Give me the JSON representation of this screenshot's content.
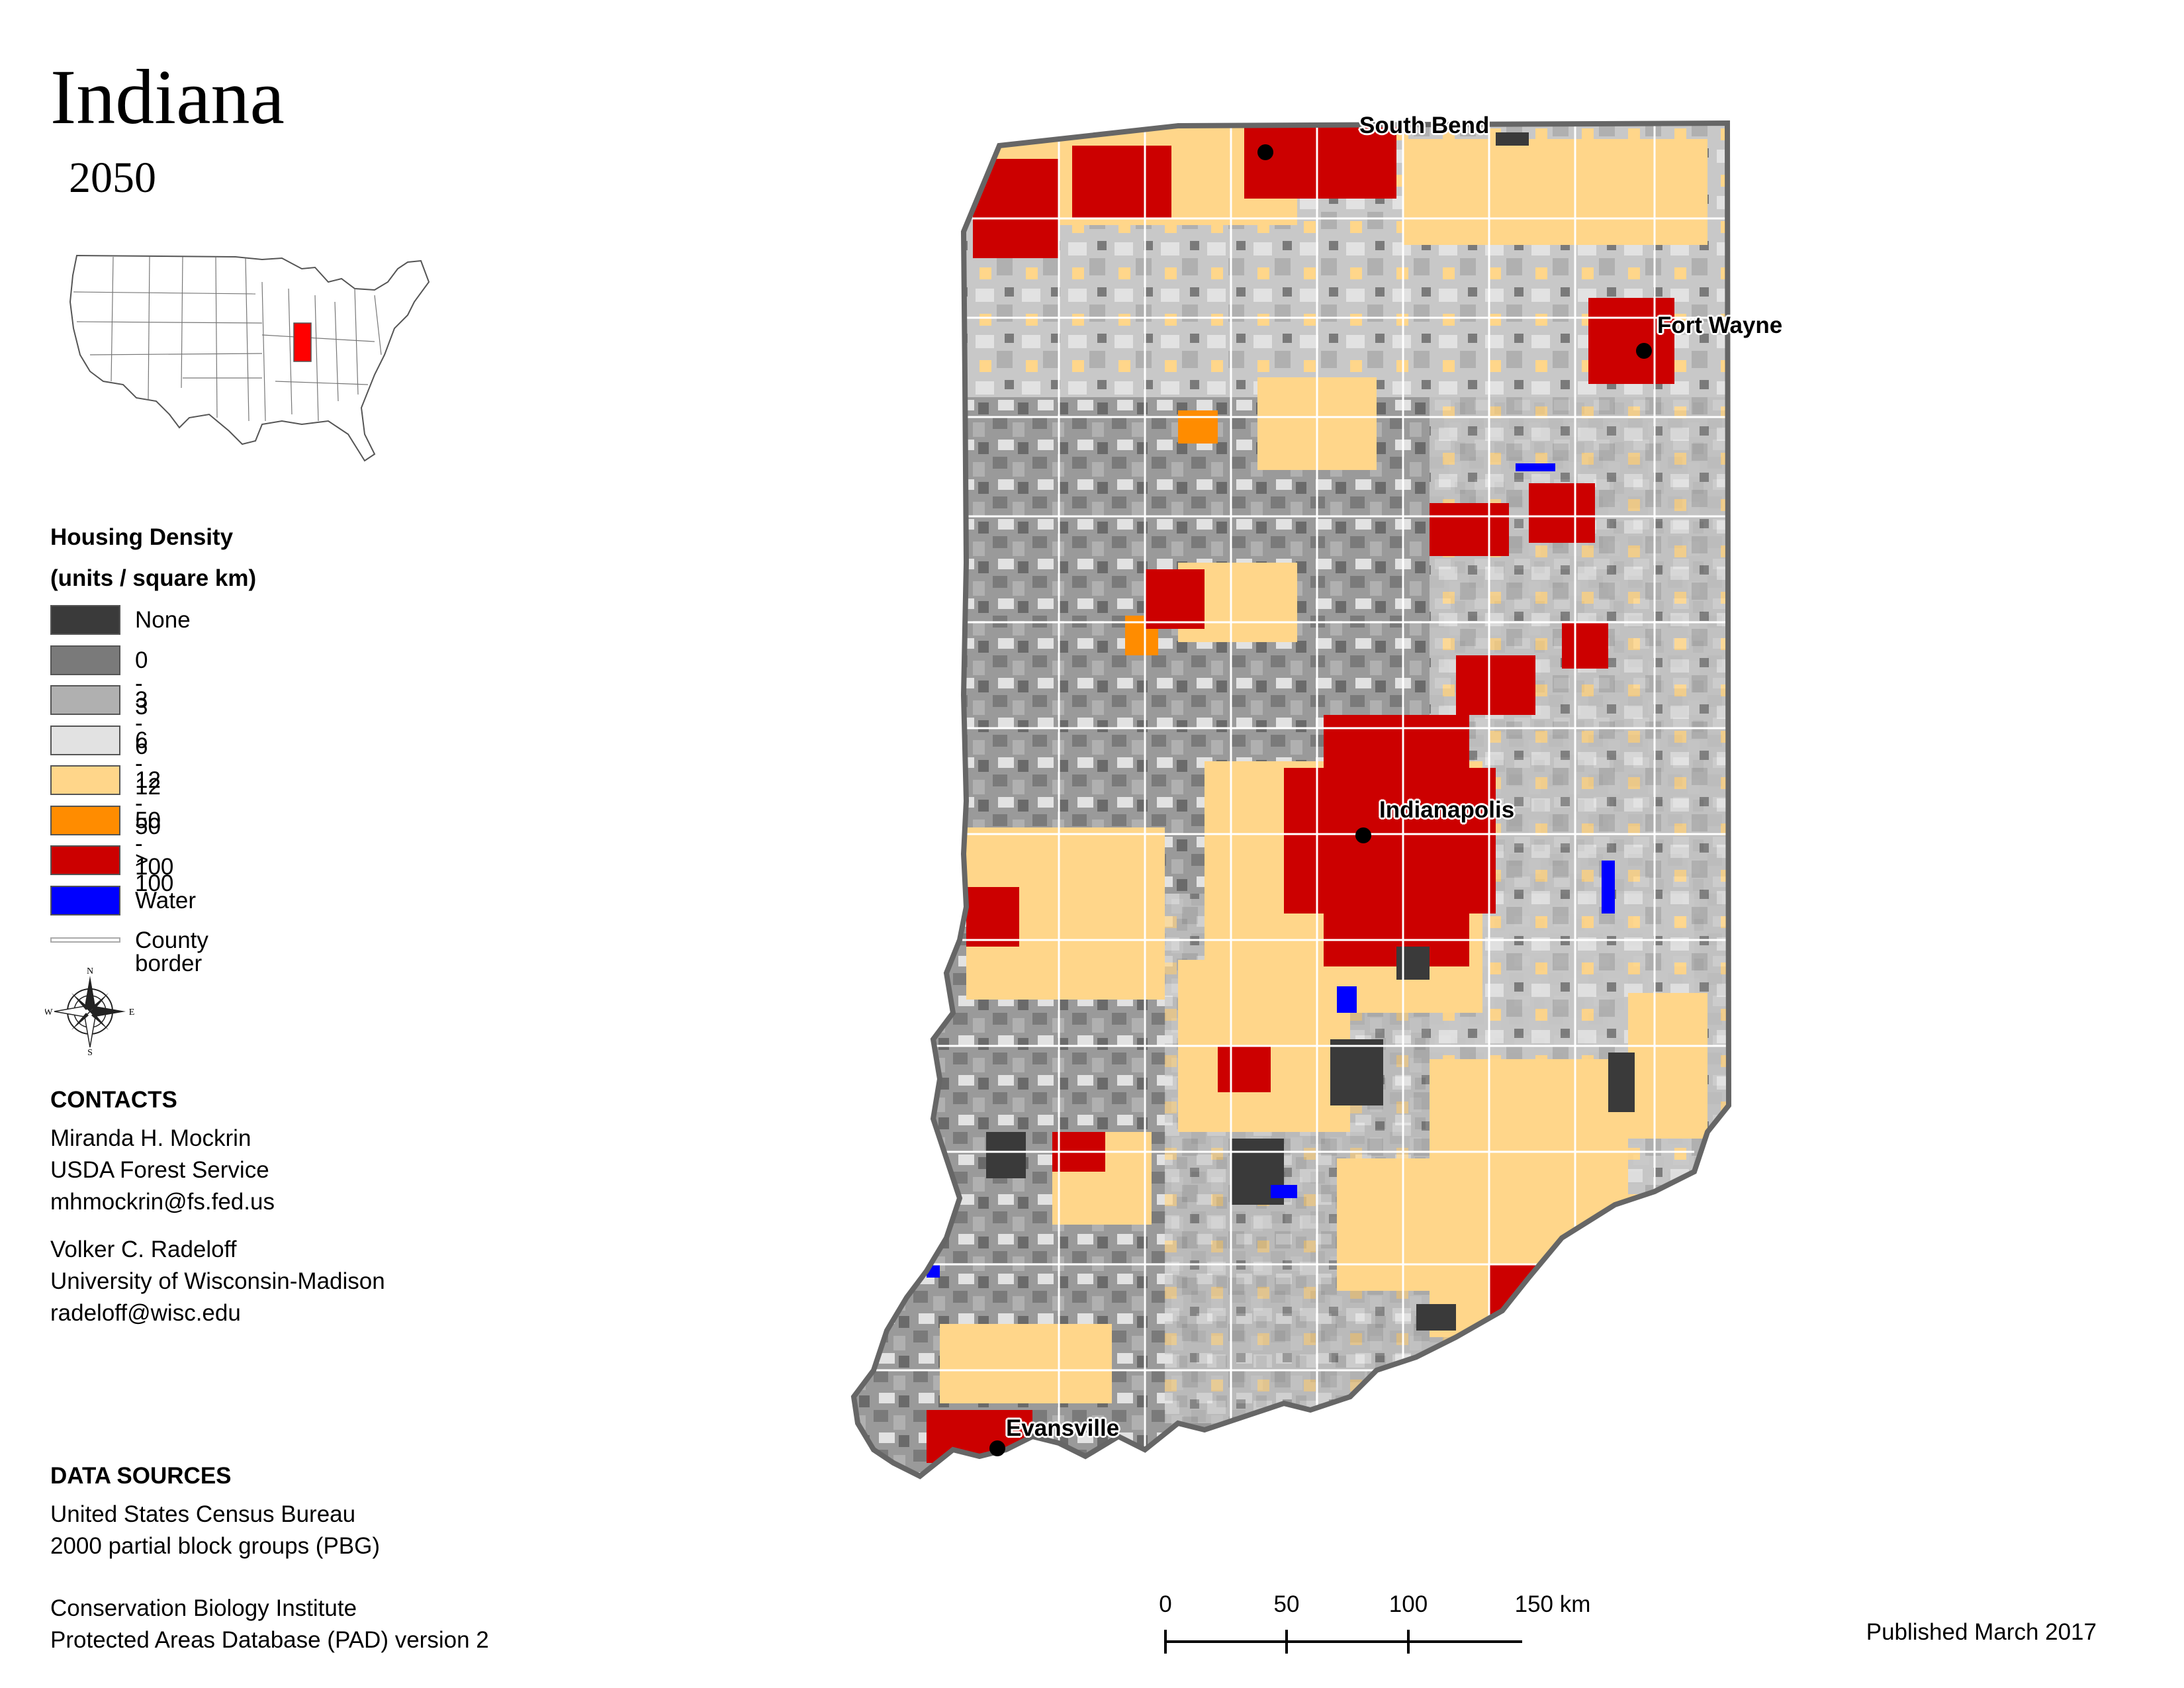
{
  "map": {
    "title": "Indiana",
    "subtitle": "2050"
  },
  "legend": {
    "title_line1": "Housing Density",
    "title_line2": "(units / square km)",
    "items": [
      {
        "label": "None",
        "color": "#3a3a3a"
      },
      {
        "label": "0 - 3",
        "color": "#7a7a7a"
      },
      {
        "label": "3 - 6",
        "color": "#b0b0b0"
      },
      {
        "label": "6 - 12",
        "color": "#e2e2e2"
      },
      {
        "label": "12 - 50",
        "color": "#ffd68a"
      },
      {
        "label": "50 - 100",
        "color": "#ff8c00"
      },
      {
        "label": "> 100",
        "color": "#cc0000"
      },
      {
        "label": "Water",
        "color": "#0000ff"
      }
    ],
    "border_label": "County border"
  },
  "compass": {
    "n": "N",
    "s": "S",
    "e": "E",
    "w": "W"
  },
  "contacts": {
    "heading": "CONTACTS",
    "person1": {
      "name": "Miranda H. Mockrin",
      "org": "USDA Forest Service",
      "email": "mhmockrin@fs.fed.us"
    },
    "person2": {
      "name": "Volker C. Radeloff",
      "org": "University of Wisconsin-Madison",
      "email": "radeloff@wisc.edu"
    }
  },
  "data_sources": {
    "heading": "DATA SOURCES",
    "source1_line1": "United States Census Bureau",
    "source1_line2": "2000 partial block groups (PBG)",
    "source2_line1": "Conservation Biology Institute",
    "source2_line2": "Protected Areas Database (PAD) version 2"
  },
  "cities": [
    {
      "name": "South Bend"
    },
    {
      "name": "Fort Wayne"
    },
    {
      "name": "Indianapolis"
    },
    {
      "name": "Evansville"
    }
  ],
  "scale": {
    "ticks": [
      "0",
      "50",
      "100",
      "150 km"
    ]
  },
  "published": "Published March 2017"
}
